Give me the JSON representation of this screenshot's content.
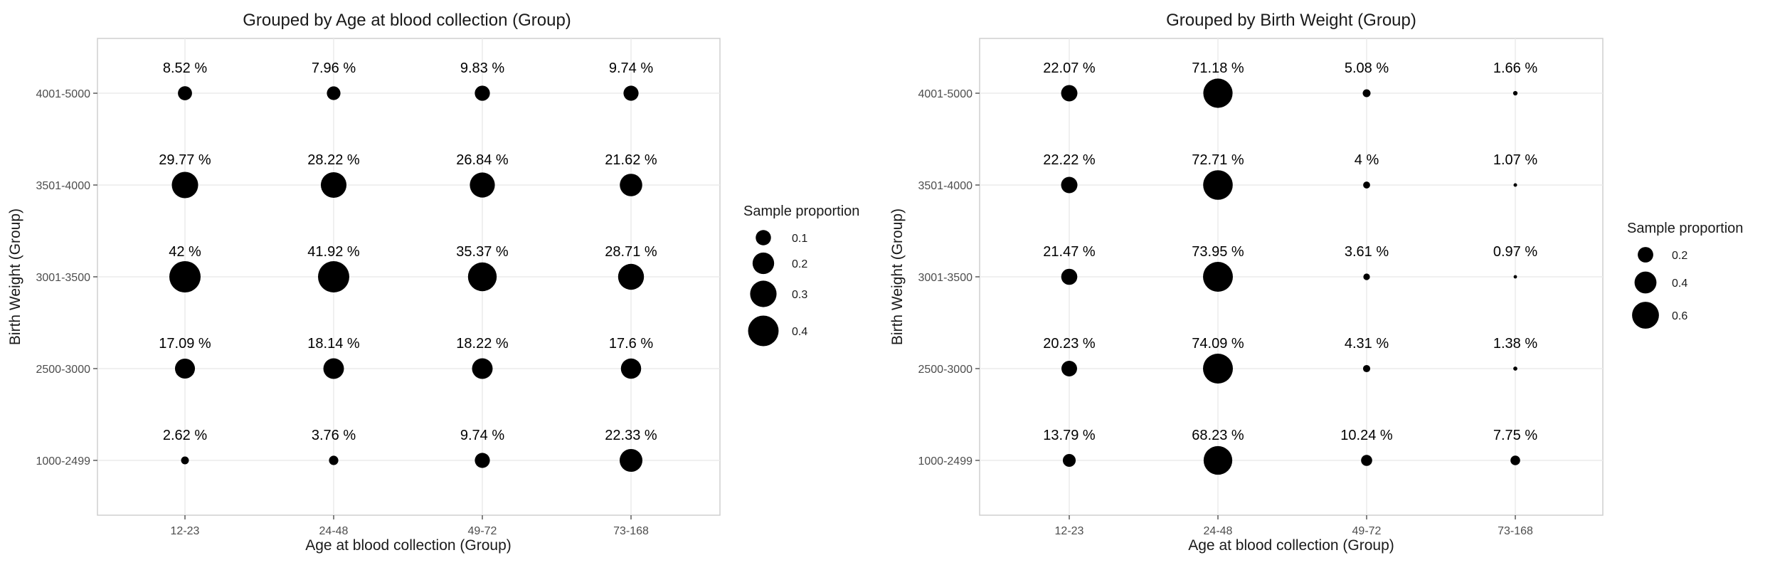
{
  "chart_data": [
    {
      "type": "scatter",
      "variant": "bubble",
      "title": "Grouped by Age at blood collection (Group)",
      "xlabel": "Age at blood collection (Group)",
      "ylabel": "Birth Weight (Group)",
      "x_categories": [
        "12-23",
        "24-48",
        "49-72",
        "73-168"
      ],
      "y_categories": [
        "1000-2499",
        "2500-3000",
        "3001-3500",
        "3501-4000",
        "4001-5000"
      ],
      "grid": true,
      "legend": {
        "title": "Sample proportion",
        "placement": "right",
        "entries": [
          {
            "value": 0.1,
            "label": "0.1"
          },
          {
            "value": 0.2,
            "label": "0.2"
          },
          {
            "value": 0.3,
            "label": "0.3"
          },
          {
            "value": 0.4,
            "label": "0.4"
          }
        ]
      },
      "points": [
        {
          "x": "12-23",
          "y": "4001-5000",
          "value": 0.0852,
          "label": "8.52 %"
        },
        {
          "x": "24-48",
          "y": "4001-5000",
          "value": 0.0796,
          "label": "7.96 %"
        },
        {
          "x": "49-72",
          "y": "4001-5000",
          "value": 0.0983,
          "label": "9.83 %"
        },
        {
          "x": "73-168",
          "y": "4001-5000",
          "value": 0.0974,
          "label": "9.74 %"
        },
        {
          "x": "12-23",
          "y": "3501-4000",
          "value": 0.2977,
          "label": "29.77 %"
        },
        {
          "x": "24-48",
          "y": "3501-4000",
          "value": 0.2822,
          "label": "28.22 %"
        },
        {
          "x": "49-72",
          "y": "3501-4000",
          "value": 0.2684,
          "label": "26.84 %"
        },
        {
          "x": "73-168",
          "y": "3501-4000",
          "value": 0.2162,
          "label": "21.62 %"
        },
        {
          "x": "12-23",
          "y": "3001-3500",
          "value": 0.42,
          "label": "42 %"
        },
        {
          "x": "24-48",
          "y": "3001-3500",
          "value": 0.4192,
          "label": "41.92 %"
        },
        {
          "x": "49-72",
          "y": "3001-3500",
          "value": 0.3537,
          "label": "35.37 %"
        },
        {
          "x": "73-168",
          "y": "3001-3500",
          "value": 0.2871,
          "label": "28.71 %"
        },
        {
          "x": "12-23",
          "y": "2500-3000",
          "value": 0.1709,
          "label": "17.09 %"
        },
        {
          "x": "24-48",
          "y": "2500-3000",
          "value": 0.1814,
          "label": "18.14 %"
        },
        {
          "x": "49-72",
          "y": "2500-3000",
          "value": 0.1822,
          "label": "18.22 %"
        },
        {
          "x": "73-168",
          "y": "2500-3000",
          "value": 0.176,
          "label": "17.6 %"
        },
        {
          "x": "12-23",
          "y": "1000-2499",
          "value": 0.0262,
          "label": "2.62 %"
        },
        {
          "x": "24-48",
          "y": "1000-2499",
          "value": 0.0376,
          "label": "3.76 %"
        },
        {
          "x": "49-72",
          "y": "1000-2499",
          "value": 0.0974,
          "label": "9.74 %"
        },
        {
          "x": "73-168",
          "y": "1000-2499",
          "value": 0.2233,
          "label": "22.33 %"
        }
      ]
    },
    {
      "type": "scatter",
      "variant": "bubble",
      "title": "Grouped by Birth Weight (Group)",
      "xlabel": "Age at blood collection (Group)",
      "ylabel": "Birth Weight (Group)",
      "x_categories": [
        "12-23",
        "24-48",
        "49-72",
        "73-168"
      ],
      "y_categories": [
        "1000-2499",
        "2500-3000",
        "3001-3500",
        "3501-4000",
        "4001-5000"
      ],
      "grid": true,
      "legend": {
        "title": "Sample proportion",
        "placement": "right",
        "entries": [
          {
            "value": 0.2,
            "label": "0.2"
          },
          {
            "value": 0.4,
            "label": "0.4"
          },
          {
            "value": 0.6,
            "label": "0.6"
          }
        ]
      },
      "points": [
        {
          "x": "12-23",
          "y": "4001-5000",
          "value": 0.2207,
          "label": "22.07 %"
        },
        {
          "x": "24-48",
          "y": "4001-5000",
          "value": 0.7118,
          "label": "71.18 %"
        },
        {
          "x": "49-72",
          "y": "4001-5000",
          "value": 0.0508,
          "label": "5.08 %"
        },
        {
          "x": "73-168",
          "y": "4001-5000",
          "value": 0.0166,
          "label": "1.66 %"
        },
        {
          "x": "12-23",
          "y": "3501-4000",
          "value": 0.2222,
          "label": "22.22 %"
        },
        {
          "x": "24-48",
          "y": "3501-4000",
          "value": 0.7271,
          "label": "72.71 %"
        },
        {
          "x": "49-72",
          "y": "3501-4000",
          "value": 0.04,
          "label": "4 %"
        },
        {
          "x": "73-168",
          "y": "3501-4000",
          "value": 0.0107,
          "label": "1.07 %"
        },
        {
          "x": "12-23",
          "y": "3001-3500",
          "value": 0.2147,
          "label": "21.47 %"
        },
        {
          "x": "24-48",
          "y": "3001-3500",
          "value": 0.7395,
          "label": "73.95 %"
        },
        {
          "x": "49-72",
          "y": "3001-3500",
          "value": 0.0361,
          "label": "3.61 %"
        },
        {
          "x": "73-168",
          "y": "3001-3500",
          "value": 0.0097,
          "label": "0.97 %"
        },
        {
          "x": "12-23",
          "y": "2500-3000",
          "value": 0.2023,
          "label": "20.23 %"
        },
        {
          "x": "24-48",
          "y": "2500-3000",
          "value": 0.7409,
          "label": "74.09 %"
        },
        {
          "x": "49-72",
          "y": "2500-3000",
          "value": 0.0431,
          "label": "4.31 %"
        },
        {
          "x": "73-168",
          "y": "2500-3000",
          "value": 0.0138,
          "label": "1.38 %"
        },
        {
          "x": "12-23",
          "y": "1000-2499",
          "value": 0.1379,
          "label": "13.79 %"
        },
        {
          "x": "24-48",
          "y": "1000-2499",
          "value": 0.6823,
          "label": "68.23 %"
        },
        {
          "x": "49-72",
          "y": "1000-2499",
          "value": 0.1024,
          "label": "10.24 %"
        },
        {
          "x": "73-168",
          "y": "1000-2499",
          "value": 0.0775,
          "label": "7.75 %"
        }
      ]
    }
  ]
}
